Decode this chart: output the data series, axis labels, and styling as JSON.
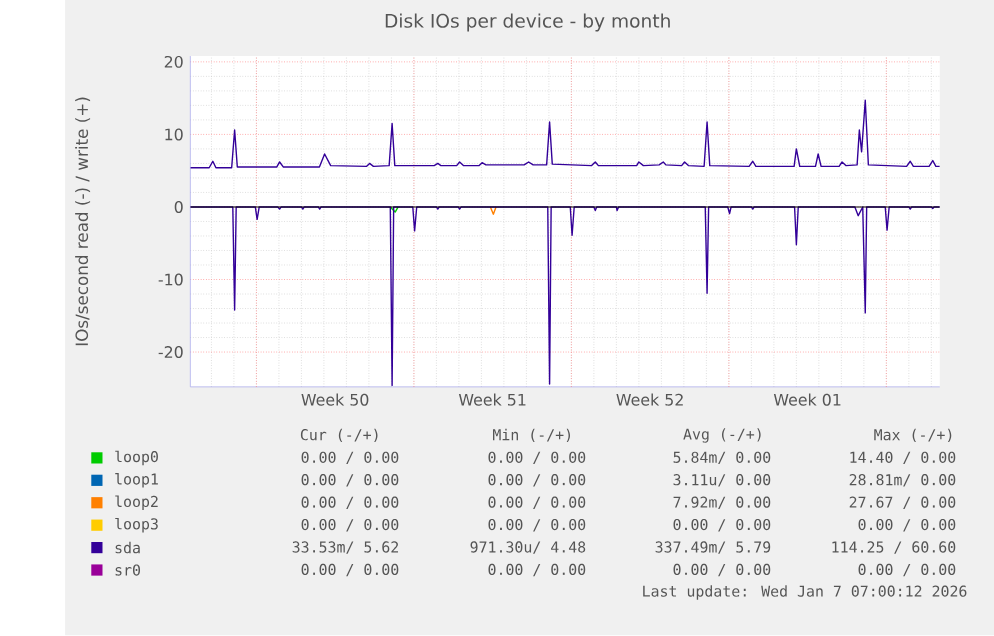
{
  "chart_data": {
    "type": "line",
    "title": "Disk IOs per device - by month",
    "ylabel": "IOs/second read (-) / write (+)",
    "xlim": [
      "2025-12-05T01:30",
      "2026-01-07T09:00"
    ],
    "ylim": [
      -24.8,
      20.8
    ],
    "xticks": [
      {
        "value": "2025-12-08T00:00",
        "label": null
      },
      {
        "value": "2025-12-11T12:00",
        "label": "Week 50"
      },
      {
        "value": "2025-12-15T00:00",
        "label": null
      },
      {
        "value": "2025-12-18T12:00",
        "label": "Week 51"
      },
      {
        "value": "2025-12-22T00:00",
        "label": null
      },
      {
        "value": "2025-12-25T12:00",
        "label": "Week 52"
      },
      {
        "value": "2025-12-29T00:00",
        "label": null
      },
      {
        "value": "2026-01-01T12:00",
        "label": "Week 01"
      },
      {
        "value": "2026-01-05T00:00",
        "label": null
      }
    ],
    "yticks": [
      -20,
      -10,
      0,
      10,
      20
    ],
    "grid": true,
    "legend": "bottom",
    "ref_lines": [
      {
        "axis": "y",
        "value": 0,
        "color": "#000000"
      }
    ],
    "series": [
      {
        "name": "loop0",
        "color": "#00cc00",
        "x": [
          "2025-12-13T22:48",
          "2025-12-14T04:00",
          "2025-12-14T07:12"
        ],
        "values": [
          0,
          -0.7,
          0
        ]
      },
      {
        "name": "loop1",
        "color": "#0066b3",
        "values": [
          null
        ]
      },
      {
        "name": "loop2",
        "color": "#ff8000",
        "x": [
          "2025-12-18T09:36",
          "2025-12-18T12:45",
          "2025-12-18T15:36"
        ],
        "values": [
          0,
          -1.0,
          0
        ]
      },
      {
        "name": "loop3",
        "color": "#ffcc00",
        "values": [
          null
        ]
      },
      {
        "name": "sda",
        "color": "#330099",
        "x": [
          "2025-12-05T01:30",
          "2025-12-05T21:36",
          "2025-12-06T01:30",
          "2025-12-06T04:48",
          "2025-12-06T21:36",
          "2025-12-07T00:45",
          "2025-12-07T03:36",
          "2025-12-08T21:36",
          "2025-12-09T00:45",
          "2025-12-09T04:48",
          "2025-12-10T19:12",
          "2025-12-11T00:45",
          "2025-12-11T07:12",
          "2025-12-12T21:36",
          "2025-12-13T00:45",
          "2025-12-13T04:48",
          "2025-12-13T21:36",
          "2025-12-14T00:45",
          "2025-12-14T03:36",
          "2025-12-15T21:36",
          "2025-12-16T01:30",
          "2025-12-16T04:48",
          "2025-12-16T21:36",
          "2025-12-17T00:45",
          "2025-12-17T04:48",
          "2025-12-17T21:36",
          "2025-12-18T00:45",
          "2025-12-18T04:48",
          "2025-12-19T21:36",
          "2025-12-20T02:24",
          "2025-12-20T07:12",
          "2025-12-20T21:36",
          "2025-12-21T00:45",
          "2025-12-21T03:36",
          "2025-12-22T21:36",
          "2025-12-23T01:30",
          "2025-12-23T04:48",
          "2025-12-24T21:36",
          "2025-12-25T00:00",
          "2025-12-25T04:48",
          "2025-12-25T21:36",
          "2025-12-26T02:00",
          "2025-12-26T04:48",
          "2025-12-26T21:36",
          "2025-12-27T00:45",
          "2025-12-27T04:48",
          "2025-12-27T21:36",
          "2025-12-28T00:45",
          "2025-12-28T03:36",
          "2025-12-29T21:36",
          "2025-12-30T01:30",
          "2025-12-30T04:48",
          "2025-12-31T21:36",
          "2026-01-01T00:00",
          "2026-01-01T03:36",
          "2026-01-01T20:24",
          "2026-01-01T23:15",
          "2026-01-02T02:24",
          "2026-01-02T21:36",
          "2026-01-03T00:45",
          "2026-01-03T04:48",
          "2026-01-03T16:48",
          "2026-01-03T19:12",
          "2026-01-03T21:36",
          "2026-01-04T01:30",
          "2026-01-04T04:48",
          "2026-01-05T21:36",
          "2026-01-06T01:30",
          "2026-01-06T04:48",
          "2026-01-06T21:36",
          "2026-01-07T01:30",
          "2026-01-07T04:48",
          "2026-01-07T09:00"
        ],
        "values": [
          5.4,
          5.4,
          6.3,
          5.4,
          5.4,
          10.6,
          5.5,
          5.5,
          6.2,
          5.5,
          5.5,
          7.3,
          5.7,
          5.6,
          6.0,
          5.6,
          5.7,
          11.5,
          5.7,
          5.7,
          6.0,
          5.7,
          5.7,
          6.2,
          5.7,
          5.7,
          6.1,
          5.8,
          5.8,
          6.2,
          5.8,
          5.8,
          11.7,
          5.9,
          5.7,
          6.2,
          5.7,
          5.7,
          6.2,
          5.7,
          5.8,
          6.2,
          5.8,
          5.7,
          6.2,
          5.7,
          5.6,
          11.7,
          5.7,
          5.6,
          6.3,
          5.6,
          5.6,
          8.0,
          5.6,
          5.6,
          7.3,
          5.6,
          5.6,
          6.2,
          5.7,
          5.8,
          10.6,
          7.6,
          14.7,
          5.8,
          5.6,
          6.3,
          5.6,
          5.6,
          6.4,
          5.6,
          5.6
        ]
      },
      {
        "name": "sr0",
        "color": "#990099",
        "values": [
          null
        ]
      },
      {
        "color": "#330099",
        "x": [
          "2025-12-05T01:30",
          "2025-12-06T22:48",
          "2025-12-07T00:45",
          "2025-12-07T02:24",
          "2025-12-07T22:48",
          "2025-12-08T00:45",
          "2025-12-08T03:00",
          "2025-12-08T22:48",
          "2025-12-09T00:45",
          "2025-12-09T02:24",
          "2025-12-10T00:00",
          "2025-12-10T01:30",
          "2025-12-10T03:00",
          "2025-12-10T18:00",
          "2025-12-10T19:30",
          "2025-12-10T21:00",
          "2025-12-13T22:48",
          "2025-12-14T00:45",
          "2025-12-14T02:24",
          "2025-12-14T22:48",
          "2025-12-15T00:45",
          "2025-12-15T03:00",
          "2025-12-16T00:00",
          "2025-12-16T01:30",
          "2025-12-16T03:00",
          "2025-12-16T23:15",
          "2025-12-17T00:45",
          "2025-12-17T02:24",
          "2025-12-20T22:48",
          "2025-12-21T00:45",
          "2025-12-21T02:24",
          "2025-12-21T22:48",
          "2025-12-22T00:45",
          "2025-12-22T03:00",
          "2025-12-23T00:00",
          "2025-12-23T01:30",
          "2025-12-23T03:00",
          "2025-12-24T00:00",
          "2025-12-24T00:45",
          "2025-12-24T02:24",
          "2025-12-27T22:48",
          "2025-12-28T00:45",
          "2025-12-28T02:24",
          "2025-12-28T22:48",
          "2025-12-29T00:45",
          "2025-12-29T02:24",
          "2025-12-30T00:00",
          "2025-12-30T01:30",
          "2025-12-30T03:00",
          "2025-12-31T22:05",
          "2026-01-01T00:00",
          "2026-01-01T02:00",
          "2026-01-03T14:24",
          "2026-01-03T18:00",
          "2026-01-03T22:48",
          "2026-01-04T01:30",
          "2026-01-04T03:00",
          "2026-01-04T22:48",
          "2026-01-05T00:45",
          "2026-01-05T03:00",
          "2026-01-06T00:00",
          "2026-01-06T01:30",
          "2026-01-06T03:00",
          "2026-01-07T00:00",
          "2026-01-07T01:30",
          "2026-01-07T03:00",
          "2026-01-07T09:00"
        ],
        "values": [
          0,
          0,
          -14.2,
          0,
          0,
          -1.7,
          0,
          0,
          -0.3,
          0,
          0,
          -0.3,
          0,
          0,
          -0.3,
          0,
          0,
          -24.6,
          0,
          0,
          -3.3,
          0,
          0,
          -0.3,
          0,
          0,
          -0.3,
          0,
          0,
          -24.4,
          0,
          0,
          -3.9,
          0,
          0,
          -0.5,
          0,
          0,
          -0.5,
          0,
          0,
          -11.9,
          0,
          0,
          -0.9,
          0,
          0,
          -0.3,
          0,
          0,
          -5.2,
          0,
          0,
          -1.2,
          0,
          -14.6,
          0,
          0,
          -3.2,
          0,
          0,
          -0.3,
          0,
          0,
          -0.2,
          0,
          0
        ]
      }
    ],
    "annotations": [
      "Cur (-/+)",
      "Min (-/+)",
      "Avg (-/+)",
      "Max (-/+)",
      "0.00 / 0.00",
      "0.00 / 0.00",
      "5.84m/ 0.00",
      "14.40 / 0.00",
      "0.00 / 0.00",
      "0.00 / 0.00",
      "3.11u/ 0.00",
      "28.81m/ 0.00",
      "0.00 / 0.00",
      "0.00 / 0.00",
      "7.92m/ 0.00",
      "27.67 / 0.00",
      "0.00 / 0.00",
      "0.00 / 0.00",
      "0.00 / 0.00",
      "0.00 / 0.00",
      "33.53m/ 5.62",
      "971.30u/ 4.48",
      "337.49m/ 5.79",
      "114.25 / 60.60",
      "0.00 / 0.00",
      "0.00 / 0.00",
      "0.00 / 0.00",
      "0.00 / 0.00",
      "Last update: Wed Jan 7 07:00:12 2026"
    ]
  }
}
